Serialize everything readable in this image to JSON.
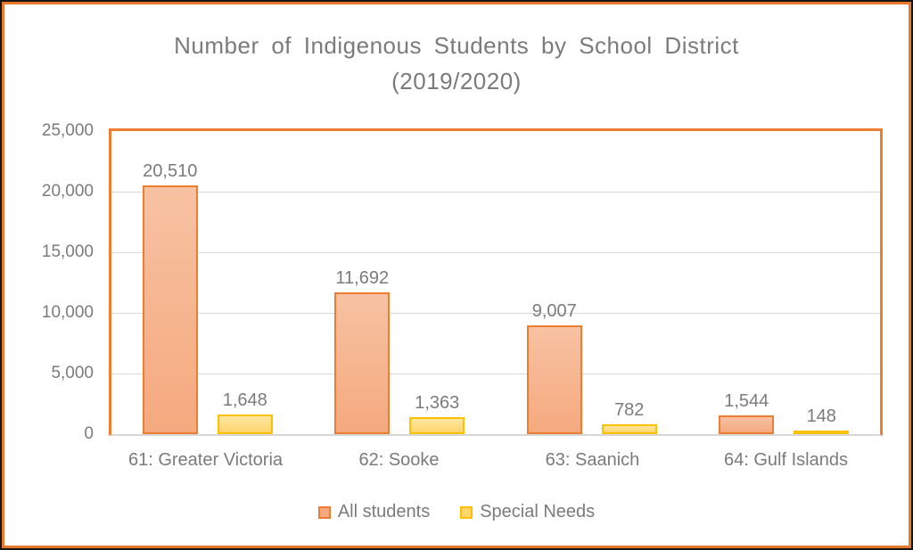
{
  "chart": {
    "title_line1": "Number of Indigenous Students by School District",
    "title_line2": "(2019/2020)"
  },
  "chart_data": {
    "type": "bar",
    "title": "Number of Indigenous Students by School District (2019/2020)",
    "categories": [
      "61: Greater Victoria",
      "62: Sooke",
      "63: Saanich",
      "64: Gulf Islands"
    ],
    "series": [
      {
        "name": "All students",
        "values": [
          20510,
          11692,
          9007,
          1544
        ],
        "labels": [
          "20,510",
          "11,692",
          "9,007",
          "1,544"
        ],
        "fill_top": "#F7C2A2",
        "fill_bottom": "#F5A97E",
        "border": "#ED7D31"
      },
      {
        "name": "Special Needs",
        "values": [
          1648,
          1363,
          782,
          148
        ],
        "labels": [
          "1,648",
          "1,363",
          "782",
          "148"
        ],
        "fill_top": "#FFE6A0",
        "fill_bottom": "#FFD56E",
        "border": "#FFC000"
      }
    ],
    "xlabel": "",
    "ylabel": "",
    "ylim": [
      0,
      25000
    ],
    "yticks": [
      {
        "value": 0,
        "label": "0"
      },
      {
        "value": 5000,
        "label": "5,000"
      },
      {
        "value": 10000,
        "label": "10,000"
      },
      {
        "value": 15000,
        "label": "15,000"
      },
      {
        "value": 20000,
        "label": "20,000"
      },
      {
        "value": 25000,
        "label": "25,000"
      }
    ],
    "grid": true,
    "legend_position": "bottom"
  },
  "colors": {
    "frame_outer": "#161616",
    "frame_inner": "#E8782A",
    "plot_border": "#ED7D31",
    "gridline": "#D9D9D9",
    "axis_line": "#D6D6D6",
    "text_gray": "#7B7B7B"
  }
}
